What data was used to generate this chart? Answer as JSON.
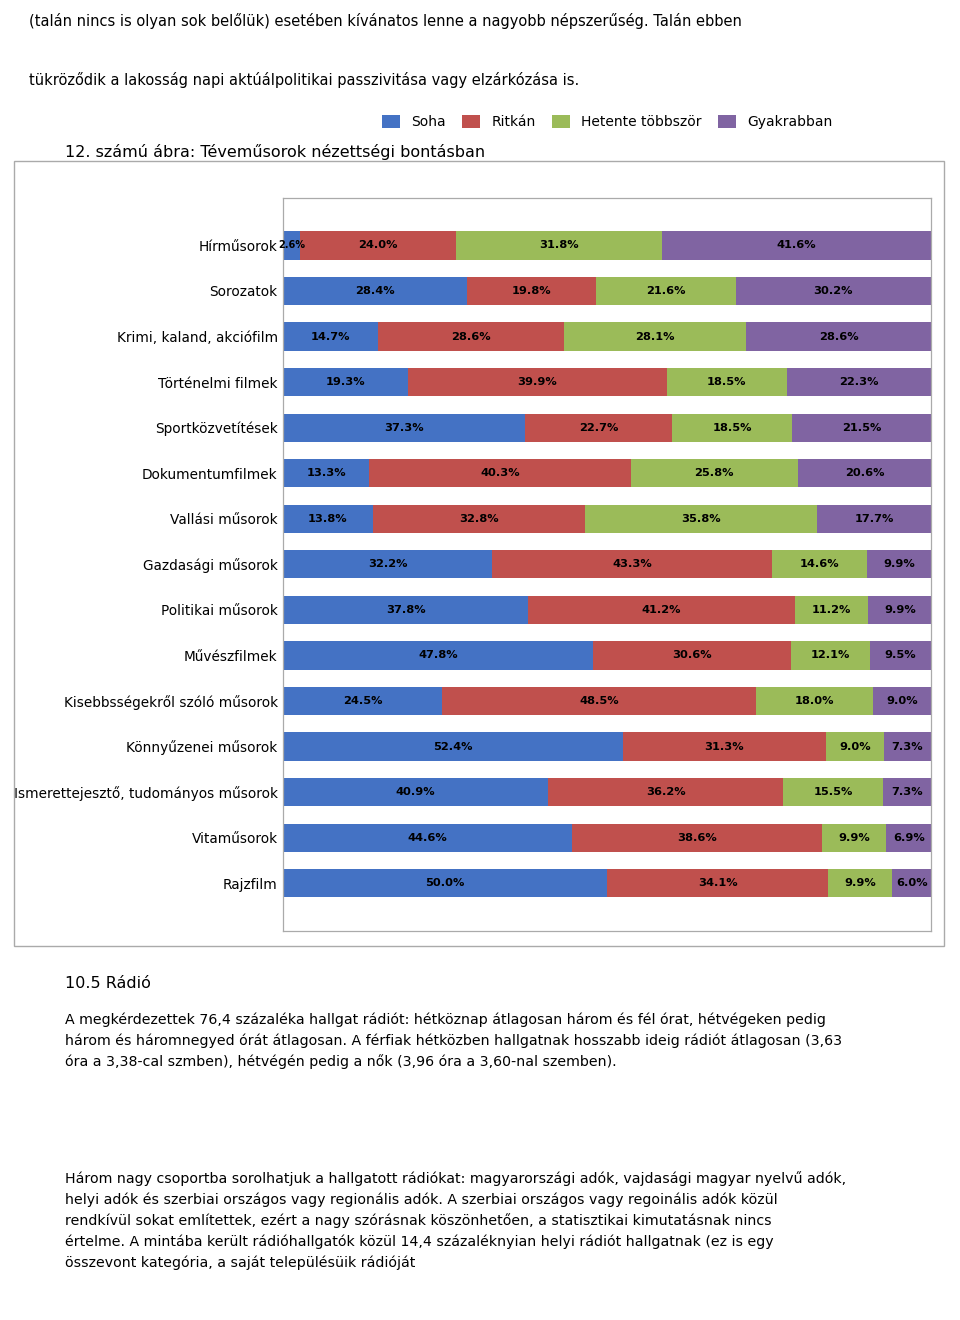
{
  "title": "12. számú ábra: Téveműsorok nézettségi bontásban",
  "legend_labels": [
    "Soha",
    "Ritkán",
    "Hetente többször",
    "Gyakrabban"
  ],
  "colors": [
    "#4472C4",
    "#C0504D",
    "#9BBB59",
    "#8064A2"
  ],
  "categories": [
    "Hírműsorok",
    "Sorozatok",
    "Krimi, kaland, akciófilm",
    "Történelmi filmek",
    "Sportközvetítések",
    "Dokumentumfilmek",
    "Vallási műsorok",
    "Gazdasági műsorok",
    "Politikai műsorok",
    "Művészfilmek",
    "Kisebbsségekről szóló műsorok",
    "Könnyűzenei műsorok",
    "Ismerettejesztő, tudományos műsorok",
    "Vitaműsorok",
    "Rajzfilm"
  ],
  "data": [
    [
      2.6,
      24.0,
      31.8,
      41.6
    ],
    [
      28.4,
      19.8,
      21.6,
      30.2
    ],
    [
      14.7,
      28.6,
      28.1,
      28.6
    ],
    [
      19.3,
      39.9,
      18.5,
      22.3
    ],
    [
      37.3,
      22.7,
      18.5,
      21.5
    ],
    [
      13.3,
      40.3,
      25.8,
      20.6
    ],
    [
      13.8,
      32.8,
      35.8,
      17.7
    ],
    [
      32.2,
      43.3,
      14.6,
      9.9
    ],
    [
      37.8,
      41.2,
      11.2,
      9.9
    ],
    [
      47.8,
      30.6,
      12.1,
      9.5
    ],
    [
      24.5,
      48.5,
      18.0,
      9.0
    ],
    [
      52.4,
      31.3,
      9.0,
      7.3
    ],
    [
      40.9,
      36.2,
      15.5,
      7.3
    ],
    [
      44.6,
      38.6,
      9.9,
      6.9
    ],
    [
      50.0,
      34.1,
      9.9,
      6.0
    ]
  ],
  "pre_text_line1": "(talán nincs is olyan sok belőlük) esetében kívánatos lenne a nagyobb népszerűség. Talán ebben",
  "pre_text_line2": "tükröződik a lakosság napi aktúálpolitikai passzivitása vagy elzárkózása is.",
  "post_heading": "10.5 Rádió",
  "post_text": "A megkérdezettek 76,4 százaléka hallgat rádiót: hétköznap átlagosan három és fél órat, hétvégeken pedig három és háromnegyed órát átlagosan. A férfiak hétközben hallgatnak hosszabb ideig rádiót átlagosan (3,63 óra a 3,38-cal szmben), hétvégén pedig a nők (3,96 óra a 3,60-nal szemben).",
  "post_text2": "Három nagy csoportba sorolhatjuk a hallgatott rádiókat: magyarországi adók, vajdasági magyar nyelvű adók, helyi adók és szerbiai országos vagy regionális adók. A szerbiai országos vagy regoinális adók közül rendkívül sokat említettek, ezért a nagy szórásnak köszönhetően, a statisztikai kimutatásnak nincs értelme. A mintába került rádióhallgatók közül 14,4 százaléknyian helyi rádiót hallgatnak (ez is egy összevont kategória, a saját településüik rádióját"
}
